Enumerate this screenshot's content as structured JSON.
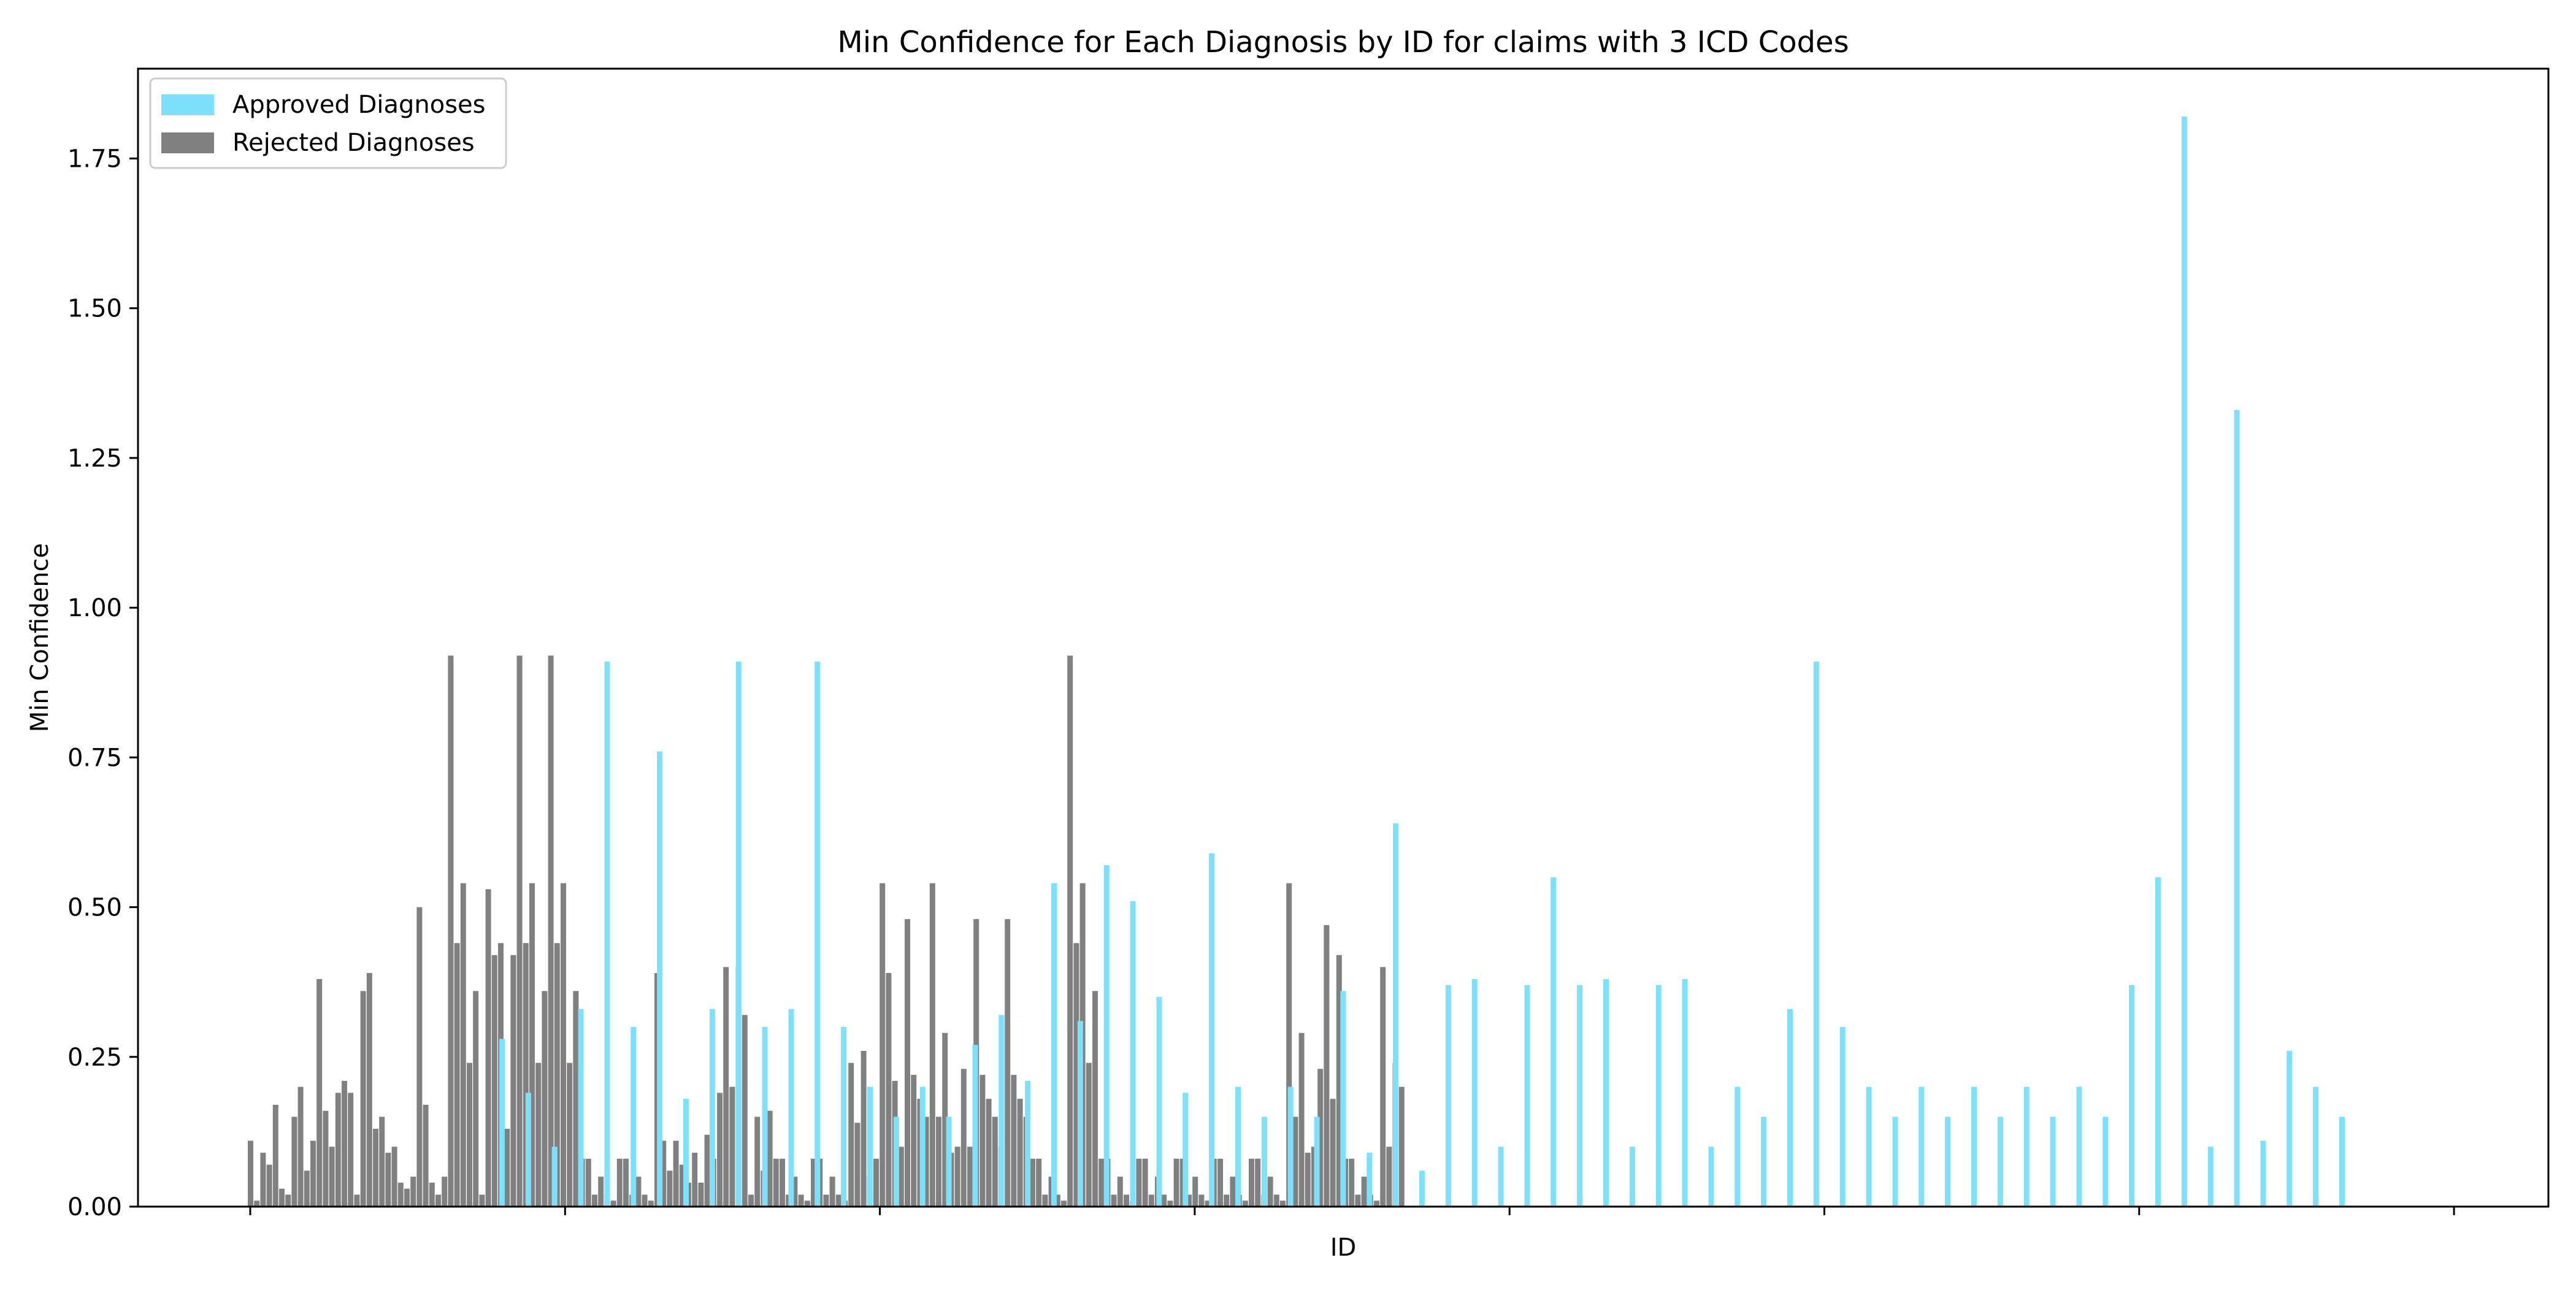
{
  "chart_data": {
    "type": "bar",
    "title": "Min Confidence for Each Diagnosis by ID for claims with 3 ICD Codes",
    "xlabel": "ID",
    "ylabel": "Min Confidence",
    "ylim": [
      0,
      1.9
    ],
    "yticks": [
      0.0,
      0.25,
      0.5,
      0.75,
      1.0,
      1.25,
      1.5,
      1.75
    ],
    "ytick_labels": [
      "0.00",
      "0.25",
      "0.50",
      "0.75",
      "1.00",
      "1.25",
      "1.50",
      "1.75"
    ],
    "x_tick_count": 8,
    "legend_position": "top-left",
    "grid": false,
    "colors": {
      "approved": "#7ee0fb",
      "rejected": "#808080"
    },
    "series": [
      {
        "name": "Approved Diagnoses",
        "color": "#7ee0fb",
        "values": [
          0.28,
          0.19,
          0.1,
          0.33,
          0.91,
          0.3,
          0.76,
          0.18,
          0.33,
          0.91,
          0.3,
          0.33,
          0.91,
          0.3,
          0.2,
          0.15,
          0.2,
          0.15,
          0.27,
          0.32,
          0.21,
          0.54,
          0.31,
          0.57,
          0.51,
          0.35,
          0.19,
          0.59,
          0.2,
          0.15,
          0.2,
          0.15,
          0.36,
          0.09,
          0.64,
          0.06,
          0.37,
          0.38,
          0.1,
          0.37,
          0.55,
          0.37,
          0.38,
          0.1,
          0.37,
          0.38,
          0.1,
          0.2,
          0.15,
          0.33,
          0.91,
          0.3,
          0.2,
          0.15,
          0.2,
          0.15,
          0.2,
          0.15,
          0.2,
          0.15,
          0.2,
          0.15,
          0.37,
          0.55,
          1.82,
          0.1,
          1.33,
          0.11,
          0.26,
          0.2,
          0.15
        ]
      },
      {
        "name": "Rejected Diagnoses",
        "color": "#808080",
        "values": [
          0.11,
          0.01,
          0.09,
          0.07,
          0.17,
          0.03,
          0.02,
          0.15,
          0.2,
          0.06,
          0.11,
          0.38,
          0.16,
          0.1,
          0.19,
          0.21,
          0.19,
          0.02,
          0.36,
          0.39,
          0.13,
          0.15,
          0.09,
          0.1,
          0.04,
          0.03,
          0.05,
          0.5,
          0.17,
          0.04,
          0.02,
          0.05,
          0.92,
          0.44,
          0.54,
          0.24,
          0.36,
          0.02,
          0.53,
          0.42,
          0.44,
          0.13,
          0.42,
          0.92,
          0.44,
          0.54,
          0.24,
          0.36,
          0.92,
          0.44,
          0.54,
          0.24,
          0.36,
          0.08,
          0.08,
          0.02,
          0.05,
          0.02,
          0.01,
          0.08,
          0.08,
          0.02,
          0.05,
          0.02,
          0.01,
          0.39,
          0.11,
          0.06,
          0.11,
          0.07,
          0.04,
          0.09,
          0.04,
          0.12,
          0.08,
          0.19,
          0.4,
          0.2,
          0.4,
          0.32,
          0.02,
          0.15,
          0.06,
          0.16,
          0.08,
          0.08,
          0.02,
          0.05,
          0.02,
          0.01,
          0.08,
          0.08,
          0.02,
          0.05,
          0.02,
          0.01,
          0.24,
          0.14,
          0.26,
          0.05,
          0.08,
          0.54,
          0.39,
          0.21,
          0.1,
          0.48,
          0.22,
          0.18,
          0.15,
          0.54,
          0.15,
          0.29,
          0.09,
          0.1,
          0.23,
          0.1,
          0.48,
          0.22,
          0.18,
          0.15,
          0.1,
          0.48,
          0.22,
          0.18,
          0.15,
          0.08,
          0.08,
          0.02,
          0.05,
          0.02,
          0.01,
          0.92,
          0.44,
          0.54,
          0.24,
          0.36,
          0.08,
          0.08,
          0.02,
          0.05,
          0.02,
          0.01,
          0.08,
          0.08,
          0.02,
          0.05,
          0.02,
          0.01,
          0.08,
          0.08,
          0.02,
          0.05,
          0.02,
          0.01,
          0.08,
          0.08,
          0.02,
          0.05,
          0.02,
          0.01,
          0.08,
          0.08,
          0.02,
          0.05,
          0.02,
          0.01,
          0.54,
          0.15,
          0.29,
          0.09,
          0.1,
          0.23,
          0.47,
          0.18,
          0.42,
          0.08,
          0.08,
          0.02,
          0.05,
          0.02,
          0.01,
          0.4,
          0.1,
          0.24,
          0.2
        ]
      }
    ]
  }
}
